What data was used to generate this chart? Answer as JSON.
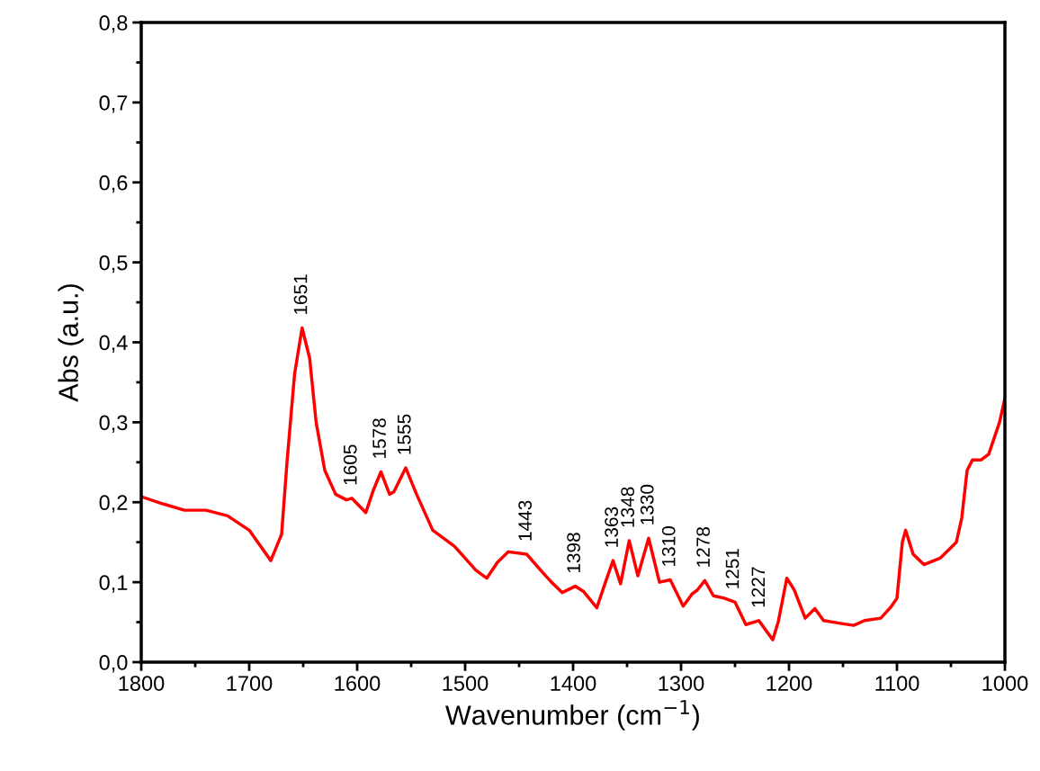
{
  "chart_data": {
    "type": "line",
    "xlabel": "Wavenumber (cm$^{−1}$)",
    "ylabel": "Abs (a.u.)",
    "xlim": [
      1800,
      1000
    ],
    "ylim": [
      0,
      0.8
    ],
    "xticks": [
      1800,
      1700,
      1600,
      1500,
      1400,
      1300,
      1200,
      1100,
      1000
    ],
    "yticks": [
      {
        "value": 0,
        "label": "0,0"
      },
      {
        "value": 0.1,
        "label": "0,1"
      },
      {
        "value": 0.2,
        "label": "0,2"
      },
      {
        "value": 0.3,
        "label": "0,3"
      },
      {
        "value": 0.4,
        "label": "0,4"
      },
      {
        "value": 0.5,
        "label": "0,5"
      },
      {
        "value": 0.6,
        "label": "0,6"
      },
      {
        "value": 0.7,
        "label": "0,7"
      },
      {
        "value": 0.8,
        "label": "0,8"
      }
    ],
    "grid": false,
    "legend": false,
    "marker": "none",
    "line_style": "solid",
    "series": [
      {
        "color": "#ff0000",
        "x": [
          1800,
          1780,
          1760,
          1740,
          1720,
          1700,
          1680,
          1670,
          1665,
          1658,
          1651,
          1644,
          1638,
          1630,
          1620,
          1610,
          1605,
          1592,
          1585,
          1578,
          1570,
          1566,
          1555,
          1545,
          1530,
          1510,
          1490,
          1480,
          1470,
          1460,
          1443,
          1430,
          1420,
          1410,
          1398,
          1390,
          1378,
          1370,
          1363,
          1356,
          1348,
          1340,
          1330,
          1320,
          1310,
          1298,
          1290,
          1285,
          1278,
          1270,
          1260,
          1250,
          1240,
          1228,
          1215,
          1210,
          1202,
          1195,
          1185,
          1176,
          1168,
          1150,
          1140,
          1130,
          1115,
          1105,
          1100,
          1095,
          1092,
          1085,
          1075,
          1060,
          1045,
          1040,
          1035,
          1030,
          1022,
          1015,
          1005,
          1000
        ],
        "values": [
          0.207,
          0.198,
          0.19,
          0.19,
          0.183,
          0.165,
          0.127,
          0.16,
          0.25,
          0.36,
          0.418,
          0.38,
          0.3,
          0.24,
          0.21,
          0.203,
          0.205,
          0.187,
          0.215,
          0.238,
          0.21,
          0.213,
          0.243,
          0.21,
          0.165,
          0.145,
          0.115,
          0.105,
          0.125,
          0.138,
          0.135,
          0.115,
          0.1,
          0.087,
          0.095,
          0.088,
          0.068,
          0.1,
          0.127,
          0.098,
          0.152,
          0.108,
          0.155,
          0.1,
          0.103,
          0.07,
          0.085,
          0.09,
          0.102,
          0.083,
          0.08,
          0.075,
          0.047,
          0.052,
          0.028,
          0.05,
          0.105,
          0.09,
          0.055,
          0.067,
          0.052,
          0.048,
          0.046,
          0.052,
          0.055,
          0.07,
          0.08,
          0.15,
          0.165,
          0.135,
          0.122,
          0.13,
          0.15,
          0.18,
          0.24,
          0.253,
          0.253,
          0.26,
          0.3,
          0.33
        ]
      }
    ],
    "annotations": [
      {
        "text": "1651",
        "x": 1651,
        "y": 0.418
      },
      {
        "text": "1605",
        "x": 1605,
        "y": 0.205
      },
      {
        "text": "1578",
        "x": 1578,
        "y": 0.238
      },
      {
        "text": "1555",
        "x": 1555,
        "y": 0.243
      },
      {
        "text": "1443",
        "x": 1443,
        "y": 0.135
      },
      {
        "text": "1398",
        "x": 1398,
        "y": 0.095
      },
      {
        "text": "1363",
        "x": 1363,
        "y": 0.127
      },
      {
        "text": "1348",
        "x": 1348,
        "y": 0.152
      },
      {
        "text": "1330",
        "x": 1330,
        "y": 0.155
      },
      {
        "text": "1310",
        "x": 1310,
        "y": 0.103
      },
      {
        "text": "1278",
        "x": 1278,
        "y": 0.102
      },
      {
        "text": "1251",
        "x": 1251,
        "y": 0.075
      },
      {
        "text": "1227",
        "x": 1227,
        "y": 0.052
      }
    ]
  }
}
